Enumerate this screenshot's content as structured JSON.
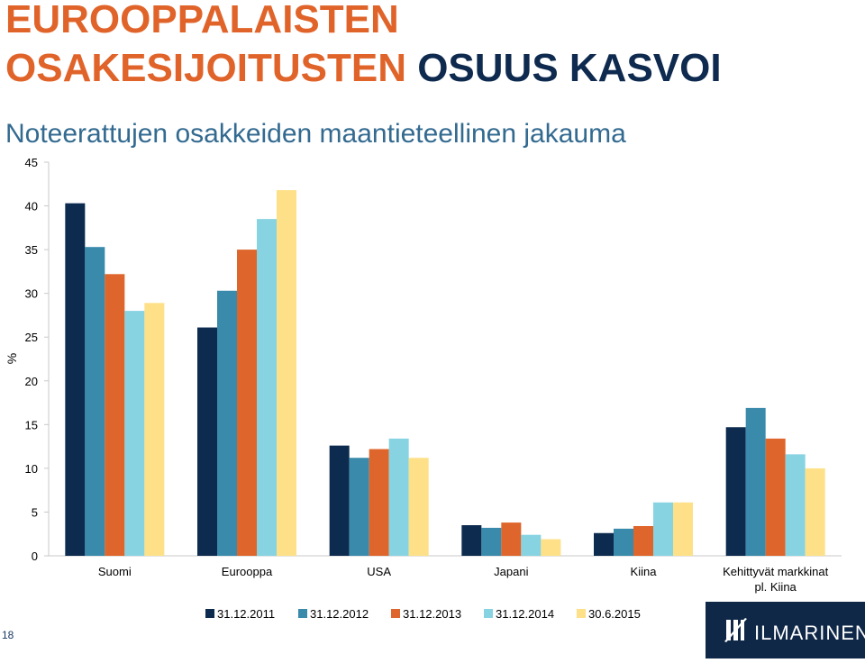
{
  "title_line1": "EUROOPPALAISTEN",
  "title_line2_part1": "OSAKESIJOITUSTEN",
  "title_line2_part2": "OSUUS KASVOI",
  "subtitle": "Noteerattujen osakkeiden maantieteellinen jakauma",
  "page_number": "18",
  "logo_text": "ILMARINEN",
  "colors": {
    "title_orange": "#e0642a",
    "title_navy": "#0f2a4f",
    "subtitle": "#336a90",
    "logo_bg": "#0f2847"
  },
  "chart_data": {
    "type": "bar",
    "title": "",
    "xlabel": "",
    "ylabel": "%",
    "ylim": [
      0,
      45
    ],
    "yticks": [
      0,
      5,
      10,
      15,
      20,
      25,
      30,
      35,
      40,
      45
    ],
    "grid": false,
    "legend_position": "bottom",
    "categories": [
      "Suomi",
      "Eurooppa",
      "USA",
      "Japani",
      "Kiina",
      [
        "Kehittyvät markkinat",
        "pl. Kiina"
      ]
    ],
    "series": [
      {
        "name": "31.12.2011",
        "color": "#0c2b4e",
        "values": [
          40.3,
          26.1,
          12.6,
          3.5,
          2.6,
          14.7
        ]
      },
      {
        "name": "31.12.2012",
        "color": "#3a8aab",
        "values": [
          35.3,
          30.3,
          11.2,
          3.2,
          3.1,
          16.9
        ]
      },
      {
        "name": "31.12.2013",
        "color": "#de652b",
        "values": [
          32.2,
          35.0,
          12.2,
          3.8,
          3.4,
          13.4
        ]
      },
      {
        "name": "31.12.2014",
        "color": "#87d3e2",
        "values": [
          28.0,
          38.5,
          13.4,
          2.4,
          6.1,
          11.6
        ]
      },
      {
        "name": "30.6.2015",
        "color": "#fde087",
        "values": [
          28.9,
          41.8,
          11.2,
          1.9,
          6.1,
          10.0
        ]
      }
    ]
  }
}
